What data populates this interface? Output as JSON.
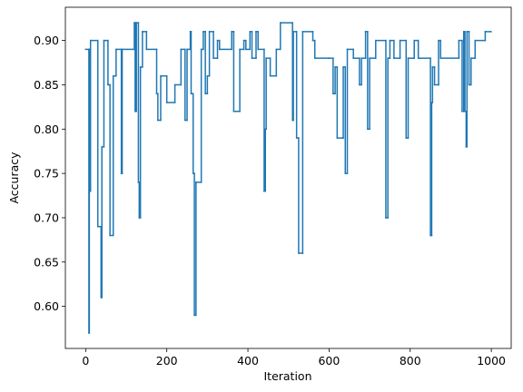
{
  "chart_data": {
    "type": "line",
    "step": "post",
    "color": "#1f77b4",
    "xlabel": "Iteration",
    "ylabel": "Accuracy",
    "xlim": [
      -50,
      1049
    ],
    "ylim": [
      0.5525,
      0.9375
    ],
    "xticks": [
      0,
      200,
      400,
      600,
      800,
      1000
    ],
    "yticks": [
      {
        "value": 0.6,
        "label": "0.60"
      },
      {
        "value": 0.65,
        "label": "0.65"
      },
      {
        "value": 0.7,
        "label": "0.70"
      },
      {
        "value": 0.75,
        "label": "0.75"
      },
      {
        "value": 0.8,
        "label": "0.80"
      },
      {
        "value": 0.85,
        "label": "0.85"
      },
      {
        "value": 0.9,
        "label": "0.90"
      }
    ],
    "x": [
      0,
      8,
      9,
      10,
      12,
      30,
      38,
      40,
      45,
      55,
      60,
      68,
      75,
      88,
      90,
      120,
      122,
      125,
      130,
      132,
      135,
      140,
      150,
      175,
      178,
      185,
      200,
      220,
      235,
      245,
      250,
      258,
      260,
      265,
      268,
      272,
      285,
      290,
      295,
      300,
      305,
      315,
      325,
      330,
      360,
      365,
      380,
      390,
      395,
      405,
      410,
      420,
      425,
      440,
      443,
      445,
      455,
      470,
      480,
      510,
      512,
      520,
      525,
      535,
      560,
      565,
      600,
      610,
      615,
      620,
      635,
      640,
      645,
      660,
      675,
      680,
      690,
      695,
      700,
      715,
      740,
      745,
      750,
      760,
      775,
      790,
      795,
      810,
      820,
      850,
      853,
      855,
      860,
      870,
      875,
      920,
      928,
      932,
      935,
      938,
      940,
      945,
      950,
      960,
      985,
      999
    ],
    "values": [
      0.89,
      0.57,
      0.89,
      0.73,
      0.9,
      0.69,
      0.61,
      0.78,
      0.9,
      0.85,
      0.68,
      0.86,
      0.89,
      0.75,
      0.89,
      0.92,
      0.82,
      0.92,
      0.74,
      0.7,
      0.87,
      0.91,
      0.89,
      0.84,
      0.81,
      0.86,
      0.83,
      0.85,
      0.89,
      0.81,
      0.89,
      0.91,
      0.84,
      0.75,
      0.59,
      0.74,
      0.89,
      0.91,
      0.84,
      0.86,
      0.91,
      0.88,
      0.9,
      0.89,
      0.91,
      0.82,
      0.89,
      0.9,
      0.89,
      0.91,
      0.88,
      0.91,
      0.89,
      0.73,
      0.8,
      0.88,
      0.86,
      0.89,
      0.92,
      0.81,
      0.91,
      0.79,
      0.66,
      0.91,
      0.9,
      0.88,
      0.88,
      0.84,
      0.87,
      0.79,
      0.87,
      0.75,
      0.89,
      0.88,
      0.85,
      0.88,
      0.91,
      0.8,
      0.88,
      0.9,
      0.7,
      0.88,
      0.9,
      0.88,
      0.9,
      0.79,
      0.88,
      0.9,
      0.88,
      0.68,
      0.83,
      0.87,
      0.85,
      0.9,
      0.88,
      0.9,
      0.82,
      0.91,
      0.82,
      0.78,
      0.91,
      0.85,
      0.88,
      0.9,
      0.91,
      0.91
    ]
  }
}
